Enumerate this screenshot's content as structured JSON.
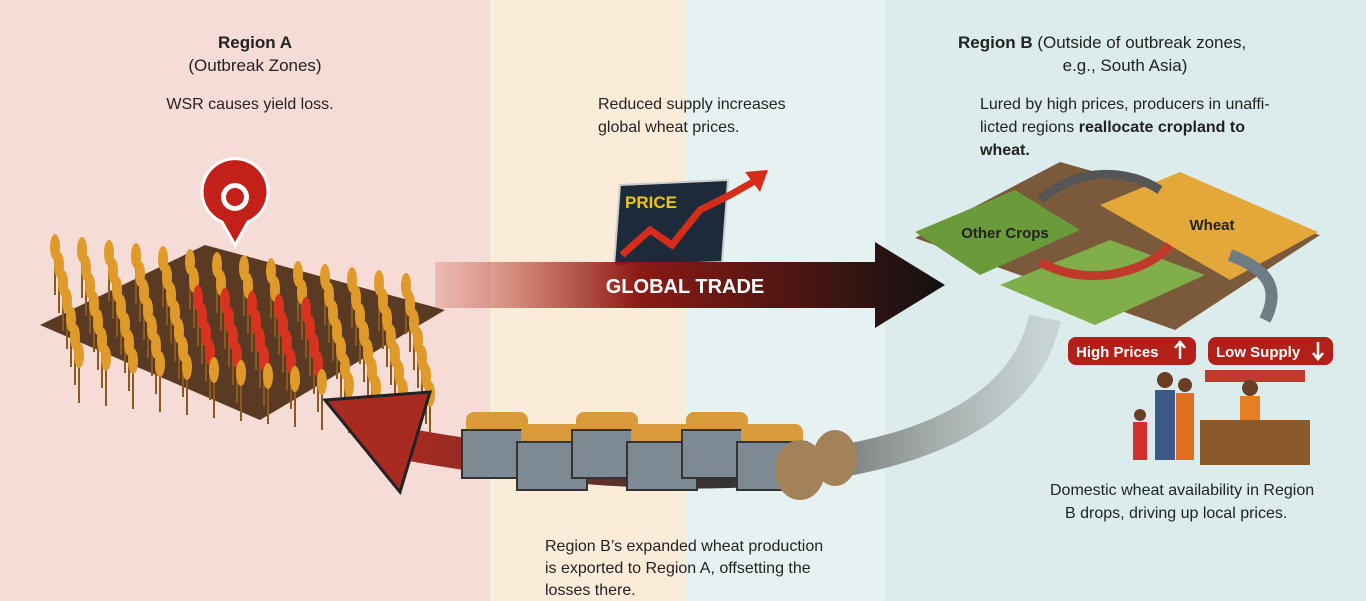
{
  "region_a": {
    "title": "Region A",
    "subtitle": "(Outbreak Zones)",
    "caption": "WSR causes yield loss."
  },
  "middle": {
    "caption": [
      "Reduced supply increases",
      "global wheat prices."
    ],
    "price_label": "PRICE",
    "trade_label": "GLOBAL TRADE"
  },
  "region_b": {
    "title": "Region B",
    "subtitle": [
      " (Outside of outbreak zones,",
      "e.g., South Asia)"
    ],
    "caption": {
      "plain": [
        "Lured by high prices, producers in unaffi-",
        "licted regions "
      ],
      "bold": [
        "reallocate cropland to",
        "wheat."
      ]
    },
    "field_labels": [
      "Other Crops",
      "Wheat"
    ],
    "badges": [
      "High Prices",
      "Low Supply"
    ],
    "caption2": [
      "Domestic wheat availability in Region",
      "B drops, driving up local prices."
    ]
  },
  "bottom": {
    "caption": [
      "Region B’s expanded wheat production",
      "is exported to Region A, offsetting the",
      "losses there."
    ]
  }
}
